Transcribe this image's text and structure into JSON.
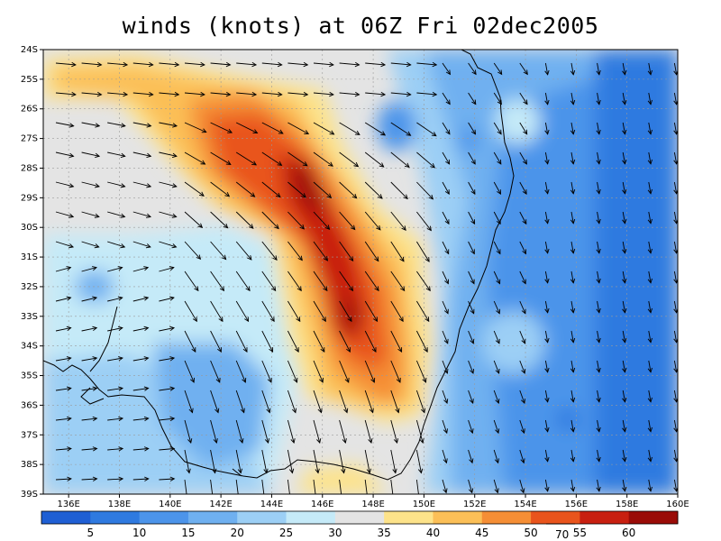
{
  "title": "winds (knots) at 06Z Fri 02dec2005",
  "map": {
    "lon_range": [
      135,
      160
    ],
    "lat_range": [
      -39,
      -24
    ],
    "lon_ticks": [
      "136E",
      "138E",
      "140E",
      "142E",
      "144E",
      "146E",
      "148E",
      "150E",
      "152E",
      "154E",
      "156E",
      "158E",
      "160E"
    ],
    "lat_ticks": [
      "24S",
      "25S",
      "26S",
      "27S",
      "28S",
      "29S",
      "30S",
      "31S",
      "32S",
      "33S",
      "34S",
      "35S",
      "36S",
      "37S",
      "38S",
      "39S"
    ],
    "grid": true,
    "shading": "wind speed (knots)"
  },
  "colorbar": {
    "labels": [
      "5",
      "10",
      "15",
      "20",
      "25",
      "30",
      "35",
      "40",
      "45",
      "50",
      "55",
      "60"
    ],
    "colors": [
      "#1f5fd4",
      "#2f7ae0",
      "#4c94ea",
      "#6fb0f0",
      "#9ccff5",
      "#c5eaf8",
      "#e4e4e4",
      "#fde38a",
      "#fbbf57",
      "#f58e35",
      "#e9541c",
      "#c81f10",
      "#9a0b07"
    ],
    "reference_vector_label": "70"
  }
}
